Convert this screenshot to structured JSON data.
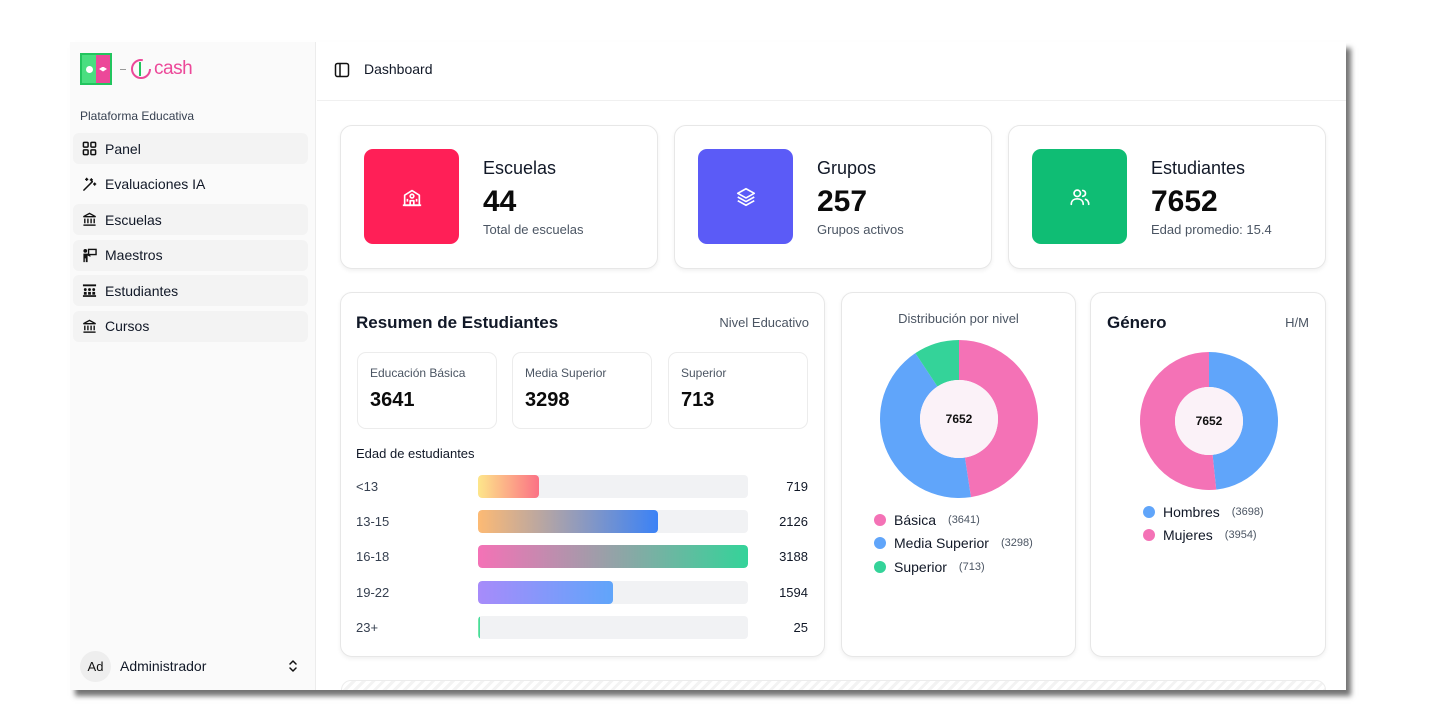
{
  "brand": {
    "name": "cash",
    "platform": "Plataforma Educativa"
  },
  "sidebar": {
    "items": [
      {
        "label": "Panel",
        "icon": "grid-icon",
        "active": true
      },
      {
        "label": "Evaluaciones IA",
        "icon": "magic-wand-icon",
        "active": false
      },
      {
        "label": "Escuelas",
        "icon": "landmark-icon",
        "active": true
      },
      {
        "label": "Maestros",
        "icon": "teacher-icon",
        "active": true
      },
      {
        "label": "Estudiantes",
        "icon": "students-icon",
        "active": true
      },
      {
        "label": "Cursos",
        "icon": "landmark-icon",
        "active": true
      }
    ],
    "user": {
      "initials": "Ad",
      "name": "Administrador"
    }
  },
  "header": {
    "breadcrumb": "Dashboard"
  },
  "stats": [
    {
      "title": "Escuelas",
      "value": "44",
      "subtitle": "Total de escuelas",
      "color": "#ff1f57",
      "icon": "school-icon"
    },
    {
      "title": "Grupos",
      "value": "257",
      "subtitle": "Grupos activos",
      "color": "#5b5bf7",
      "icon": "layers-icon"
    },
    {
      "title": "Estudiantes",
      "value": "7652",
      "subtitle": "Edad promedio: 15.4",
      "color": "#0fbd74",
      "icon": "users-icon"
    }
  ],
  "summary": {
    "title": "Resumen de Estudiantes",
    "right_label": "Nivel Educativo",
    "levels": [
      {
        "name": "Educación Básica",
        "value": "3641"
      },
      {
        "name": "Media Superior",
        "value": "3298"
      },
      {
        "name": "Superior",
        "value": "713"
      }
    ],
    "ages_title": "Edad de estudiantes",
    "ages": [
      {
        "range": "<13",
        "count": 719
      },
      {
        "range": "13-15",
        "count": 2126
      },
      {
        "range": "16-18",
        "count": 3188
      },
      {
        "range": "19-22",
        "count": 1594
      },
      {
        "range": "23+",
        "count": 25
      }
    ]
  },
  "distribution": {
    "title": "Distribución por nivel",
    "center": "7652",
    "segments": [
      {
        "name": "Básica",
        "value": 3641,
        "label": "(3641)",
        "color": "#f472b6"
      },
      {
        "name": "Media Superior",
        "value": 3298,
        "label": "(3298)",
        "color": "#60a5fa"
      },
      {
        "name": "Superior",
        "value": 713,
        "label": "(713)",
        "color": "#34d399"
      }
    ]
  },
  "gender": {
    "title": "Género",
    "right_label": "H/M",
    "center": "7652",
    "segments": [
      {
        "name": "Hombres",
        "value": 3698,
        "label": "(3698)",
        "color": "#60a5fa"
      },
      {
        "name": "Mujeres",
        "value": 3954,
        "label": "(3954)",
        "color": "#f472b6"
      }
    ]
  }
}
